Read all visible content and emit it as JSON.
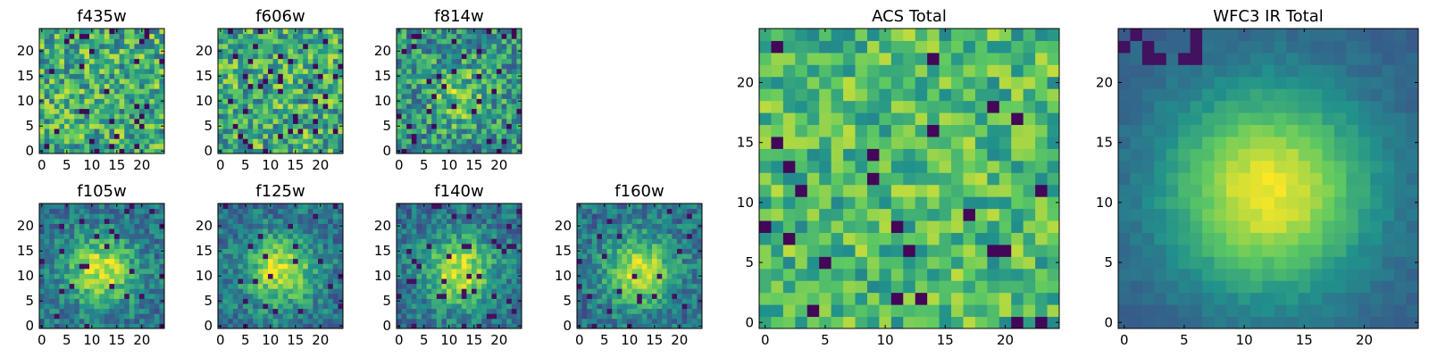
{
  "figure": {
    "panels_description": "grid of heatmap images",
    "colormap": [
      "#440154",
      "#3b528b",
      "#21918c",
      "#5ec962",
      "#fde725"
    ]
  },
  "chart_data": [
    {
      "type": "heatmap",
      "title": "f435w",
      "xticks": [
        "0",
        "5",
        "10",
        "15",
        "20"
      ],
      "yticks": [
        "0",
        "5",
        "10",
        "15",
        "20"
      ],
      "xlim": [
        0,
        24
      ],
      "ylim": [
        0,
        24
      ],
      "grid": false,
      "pattern": "noise",
      "seed": 11
    },
    {
      "type": "heatmap",
      "title": "f606w",
      "xticks": [
        "0",
        "5",
        "10",
        "15",
        "20"
      ],
      "yticks": [
        "0",
        "5",
        "10",
        "15",
        "20"
      ],
      "xlim": [
        0,
        24
      ],
      "ylim": [
        0,
        24
      ],
      "grid": false,
      "pattern": "noise",
      "seed": 23
    },
    {
      "type": "heatmap",
      "title": "f814w",
      "xticks": [
        "0",
        "5",
        "10",
        "15",
        "20"
      ],
      "yticks": [
        "0",
        "5",
        "10",
        "15",
        "20"
      ],
      "xlim": [
        0,
        24
      ],
      "ylim": [
        0,
        24
      ],
      "grid": false,
      "pattern": "noise-blob",
      "seed": 37
    },
    {
      "type": "heatmap",
      "title": "f105w",
      "xticks": [
        "0",
        "5",
        "10",
        "15",
        "20"
      ],
      "yticks": [
        "0",
        "5",
        "10",
        "15",
        "20"
      ],
      "xlim": [
        0,
        24
      ],
      "ylim": [
        0,
        24
      ],
      "grid": false,
      "pattern": "blob",
      "seed": 41
    },
    {
      "type": "heatmap",
      "title": "f125w",
      "xticks": [
        "0",
        "5",
        "10",
        "15",
        "20"
      ],
      "yticks": [
        "0",
        "5",
        "10",
        "15",
        "20"
      ],
      "xlim": [
        0,
        24
      ],
      "ylim": [
        0,
        24
      ],
      "grid": false,
      "pattern": "blob",
      "seed": 53
    },
    {
      "type": "heatmap",
      "title": "f140w",
      "xticks": [
        "0",
        "5",
        "10",
        "15",
        "20"
      ],
      "yticks": [
        "0",
        "5",
        "10",
        "15",
        "20"
      ],
      "xlim": [
        0,
        24
      ],
      "ylim": [
        0,
        24
      ],
      "grid": false,
      "pattern": "blob",
      "seed": 67
    },
    {
      "type": "heatmap",
      "title": "f160w",
      "xticks": [
        "0",
        "5",
        "10",
        "15",
        "20"
      ],
      "yticks": [
        "0",
        "5",
        "10",
        "15",
        "20"
      ],
      "xlim": [
        0,
        24
      ],
      "ylim": [
        0,
        24
      ],
      "grid": false,
      "pattern": "blob",
      "seed": 79
    },
    {
      "type": "heatmap",
      "title": "ACS Total",
      "xticks": [
        "0",
        "5",
        "10",
        "15",
        "20"
      ],
      "yticks": [
        "0",
        "5",
        "10",
        "15",
        "20"
      ],
      "xlim": [
        0,
        24
      ],
      "ylim": [
        0,
        24
      ],
      "grid": false,
      "pattern": "noise-bright",
      "seed": 83
    },
    {
      "type": "heatmap",
      "title": "WFC3 IR Total",
      "xticks": [
        "0",
        "5",
        "10",
        "15",
        "20"
      ],
      "yticks": [
        "0",
        "5",
        "10",
        "15",
        "20"
      ],
      "xlim": [
        0,
        24
      ],
      "ylim": [
        0,
        24
      ],
      "grid": false,
      "pattern": "smooth-blob",
      "seed": 97
    }
  ]
}
